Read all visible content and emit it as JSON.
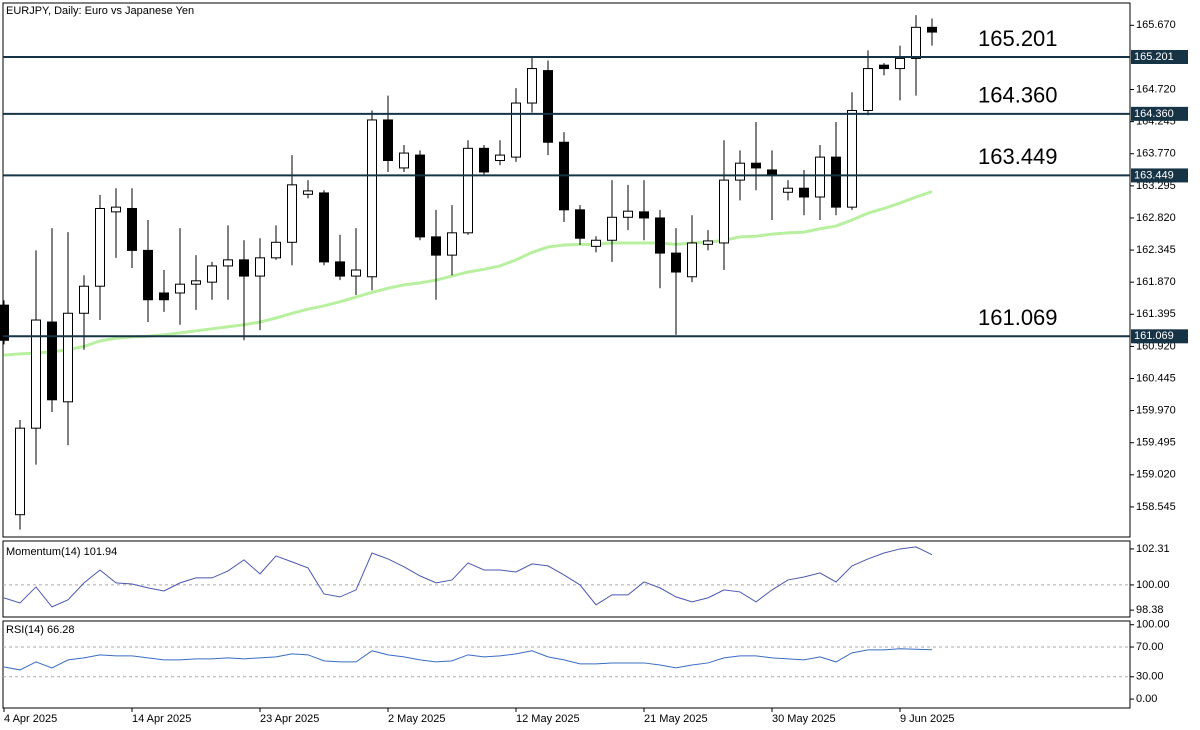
{
  "chart_data": [
    {
      "type": "candlestick",
      "title": "EURJPY, Daily:  Euro vs Japanese Yen",
      "categories": [
        "4 Apr 2025",
        null,
        null,
        null,
        null,
        null,
        null,
        null,
        "14 Apr 2025",
        null,
        null,
        null,
        null,
        null,
        null,
        null,
        "23 Apr 2025",
        null,
        null,
        null,
        null,
        null,
        null,
        null,
        "2 May 2025",
        null,
        null,
        null,
        null,
        null,
        null,
        null,
        "12 May 2025",
        null,
        null,
        null,
        null,
        null,
        null,
        null,
        "21 May 2025",
        null,
        null,
        null,
        null,
        null,
        null,
        null,
        "30 May 2025",
        null,
        null,
        null,
        null,
        null,
        null,
        null,
        "9 Jun 2025",
        null,
        null
      ],
      "ohlc": [
        [
          161.53,
          161.6,
          160.95,
          161.01
        ],
        [
          158.43,
          159.83,
          158.21,
          159.71
        ],
        [
          159.71,
          162.34,
          159.17,
          161.31
        ],
        [
          161.28,
          162.67,
          159.95,
          160.13
        ],
        [
          160.1,
          162.61,
          159.46,
          161.41
        ],
        [
          161.41,
          161.97,
          160.87,
          161.81
        ],
        [
          161.81,
          163.16,
          161.31,
          162.96
        ],
        [
          162.91,
          163.26,
          162.23,
          162.98
        ],
        [
          162.96,
          163.26,
          162.08,
          162.34
        ],
        [
          162.34,
          162.79,
          161.28,
          161.61
        ],
        [
          161.71,
          162.05,
          161.43,
          161.61
        ],
        [
          161.71,
          162.67,
          161.24,
          161.84
        ],
        [
          161.84,
          162.27,
          161.46,
          161.89
        ],
        [
          161.87,
          162.17,
          161.61,
          162.11
        ],
        [
          162.11,
          162.71,
          161.61,
          162.2
        ],
        [
          162.2,
          162.49,
          161.01,
          161.96
        ],
        [
          161.96,
          162.52,
          161.16,
          162.23
        ],
        [
          162.23,
          162.71,
          162.2,
          162.46
        ],
        [
          162.46,
          163.75,
          162.12,
          163.31
        ],
        [
          163.17,
          163.38,
          163.11,
          163.22
        ],
        [
          163.19,
          163.23,
          162.12,
          162.17
        ],
        [
          162.17,
          162.57,
          161.9,
          161.96
        ],
        [
          161.96,
          162.67,
          161.68,
          162.05
        ],
        [
          161.95,
          164.41,
          161.75,
          164.27
        ],
        [
          164.27,
          164.63,
          163.5,
          163.67
        ],
        [
          163.56,
          163.9,
          163.5,
          163.78
        ],
        [
          163.75,
          163.82,
          162.49,
          162.54
        ],
        [
          162.54,
          162.94,
          161.61,
          162.27
        ],
        [
          162.27,
          163.01,
          161.97,
          162.6
        ],
        [
          162.6,
          163.97,
          162.57,
          163.85
        ],
        [
          163.85,
          163.9,
          163.45,
          163.5
        ],
        [
          163.67,
          163.97,
          163.6,
          163.75
        ],
        [
          163.72,
          164.74,
          163.65,
          164.52
        ],
        [
          164.52,
          165.2,
          164.38,
          165.03
        ],
        [
          165.0,
          165.15,
          163.75,
          163.94
        ],
        [
          163.94,
          164.09,
          162.76,
          162.94
        ],
        [
          162.94,
          163.01,
          162.42,
          162.52
        ],
        [
          162.4,
          162.55,
          162.31,
          162.49
        ],
        [
          162.49,
          163.38,
          162.17,
          162.83
        ],
        [
          162.83,
          163.31,
          162.64,
          162.92
        ],
        [
          162.91,
          163.38,
          162.49,
          162.82
        ],
        [
          162.82,
          162.94,
          161.78,
          162.3
        ],
        [
          162.3,
          162.67,
          161.09,
          162.02
        ],
        [
          161.95,
          162.86,
          161.87,
          162.45
        ],
        [
          162.43,
          162.64,
          162.34,
          162.48
        ],
        [
          162.45,
          163.97,
          162.05,
          163.38
        ],
        [
          163.38,
          163.82,
          163.08,
          163.63
        ],
        [
          163.63,
          164.24,
          163.23,
          163.56
        ],
        [
          163.53,
          163.82,
          162.79,
          163.45
        ],
        [
          163.2,
          163.38,
          163.08,
          163.26
        ],
        [
          163.26,
          163.53,
          162.86,
          163.13
        ],
        [
          163.13,
          163.9,
          162.79,
          163.72
        ],
        [
          163.72,
          164.24,
          162.86,
          162.98
        ],
        [
          162.98,
          164.68,
          162.94,
          164.41
        ],
        [
          164.41,
          165.3,
          164.34,
          165.03
        ],
        [
          165.08,
          165.11,
          164.93,
          165.03
        ],
        [
          165.03,
          165.37,
          164.56,
          165.18
        ],
        [
          165.18,
          165.82,
          164.63,
          165.64
        ],
        [
          165.64,
          165.77,
          165.37,
          165.57
        ]
      ],
      "ma_values": [
        160.79,
        160.81,
        160.82,
        160.84,
        160.87,
        160.92,
        161.0,
        161.04,
        161.06,
        161.07,
        161.09,
        161.12,
        161.15,
        161.18,
        161.21,
        161.24,
        161.28,
        161.34,
        161.41,
        161.47,
        161.52,
        161.58,
        161.65,
        161.72,
        161.78,
        161.83,
        161.86,
        161.9,
        161.96,
        162.02,
        162.06,
        162.11,
        162.2,
        162.31,
        162.39,
        162.42,
        162.43,
        162.43,
        162.45,
        162.45,
        162.45,
        162.45,
        162.43,
        162.45,
        162.46,
        162.49,
        162.54,
        162.55,
        162.58,
        162.6,
        162.61,
        162.66,
        162.7,
        162.79,
        162.89,
        162.96,
        163.04,
        163.13,
        163.21
      ],
      "ma_color": "#b8f0a0",
      "levels": [
        165.201,
        {
          "value": 164.36,
          "label": "164.360"
        },
        163.449,
        161.069
      ],
      "level_color": "#173447",
      "ylim": [
        158.1,
        166.0
      ],
      "yticks": [
        {
          "value": 165.67,
          "label": "165.670"
        },
        {
          "value": 164.72,
          "label": "164.720"
        },
        164.245,
        {
          "value": 163.77,
          "label": "163.770"
        },
        163.295,
        {
          "value": 162.82,
          "label": "162.820"
        },
        162.345,
        {
          "value": 161.87,
          "label": "161.870"
        },
        161.395,
        {
          "value": 160.92,
          "label": "160.920"
        },
        160.445,
        {
          "value": 159.97,
          "label": "159.970"
        },
        159.495,
        {
          "value": 159.02,
          "label": "159.020"
        },
        158.545
      ]
    },
    {
      "type": "line",
      "title": "Momentum(14) 101.94",
      "values": [
        99.17,
        98.84,
        99.87,
        98.59,
        99.04,
        100.13,
        100.96,
        100.13,
        100.06,
        99.81,
        99.61,
        100.13,
        100.45,
        100.45,
        100.9,
        101.61,
        100.71,
        101.86,
        101.48,
        101.09,
        99.42,
        99.23,
        99.68,
        102.05,
        101.67,
        101.16,
        100.58,
        100.13,
        100.32,
        101.41,
        100.96,
        100.96,
        100.83,
        101.35,
        101.22,
        100.64,
        100.0,
        98.72,
        99.36,
        99.36,
        100.19,
        99.81,
        99.23,
        98.91,
        99.17,
        99.68,
        99.55,
        98.91,
        99.68,
        100.32,
        100.51,
        100.77,
        100.19,
        101.22,
        101.67,
        102.05,
        102.31,
        102.44,
        101.94
      ],
      "color": "#4b58b0",
      "ylim": [
        97.94,
        102.82
      ],
      "yticks": [
        102.31,
        {
          "value": 100,
          "label": "100.00"
        },
        98.38
      ],
      "grid_levels": [
        100
      ]
    },
    {
      "type": "line",
      "title": "RSI(14) 66.28",
      "values": [
        43.2,
        39.2,
        50.0,
        41.9,
        52.7,
        55.4,
        59.5,
        58.1,
        58.1,
        55.4,
        52.7,
        52.7,
        54.1,
        54.1,
        55.4,
        54.1,
        55.4,
        56.8,
        60.8,
        59.5,
        51.4,
        50.0,
        50.0,
        64.9,
        59.5,
        56.8,
        52.7,
        50.0,
        51.4,
        59.5,
        56.8,
        58.1,
        60.8,
        64.9,
        56.8,
        52.7,
        47.3,
        47.3,
        48.6,
        48.6,
        48.6,
        45.9,
        41.9,
        45.9,
        48.6,
        55.4,
        58.1,
        58.1,
        55.4,
        54.1,
        52.7,
        56.8,
        50.0,
        62.2,
        66.2,
        66.2,
        67.6,
        67.0,
        66.28
      ],
      "color": "#3a6cc4",
      "ylim": [
        -12,
        105
      ],
      "yticks": [
        {
          "value": 100,
          "label": "100.00"
        },
        {
          "value": 70,
          "label": "70.00"
        },
        {
          "value": 30,
          "label": "30.00"
        },
        {
          "value": 0,
          "label": "0.00"
        }
      ],
      "grid_levels": [
        70,
        30
      ]
    }
  ]
}
